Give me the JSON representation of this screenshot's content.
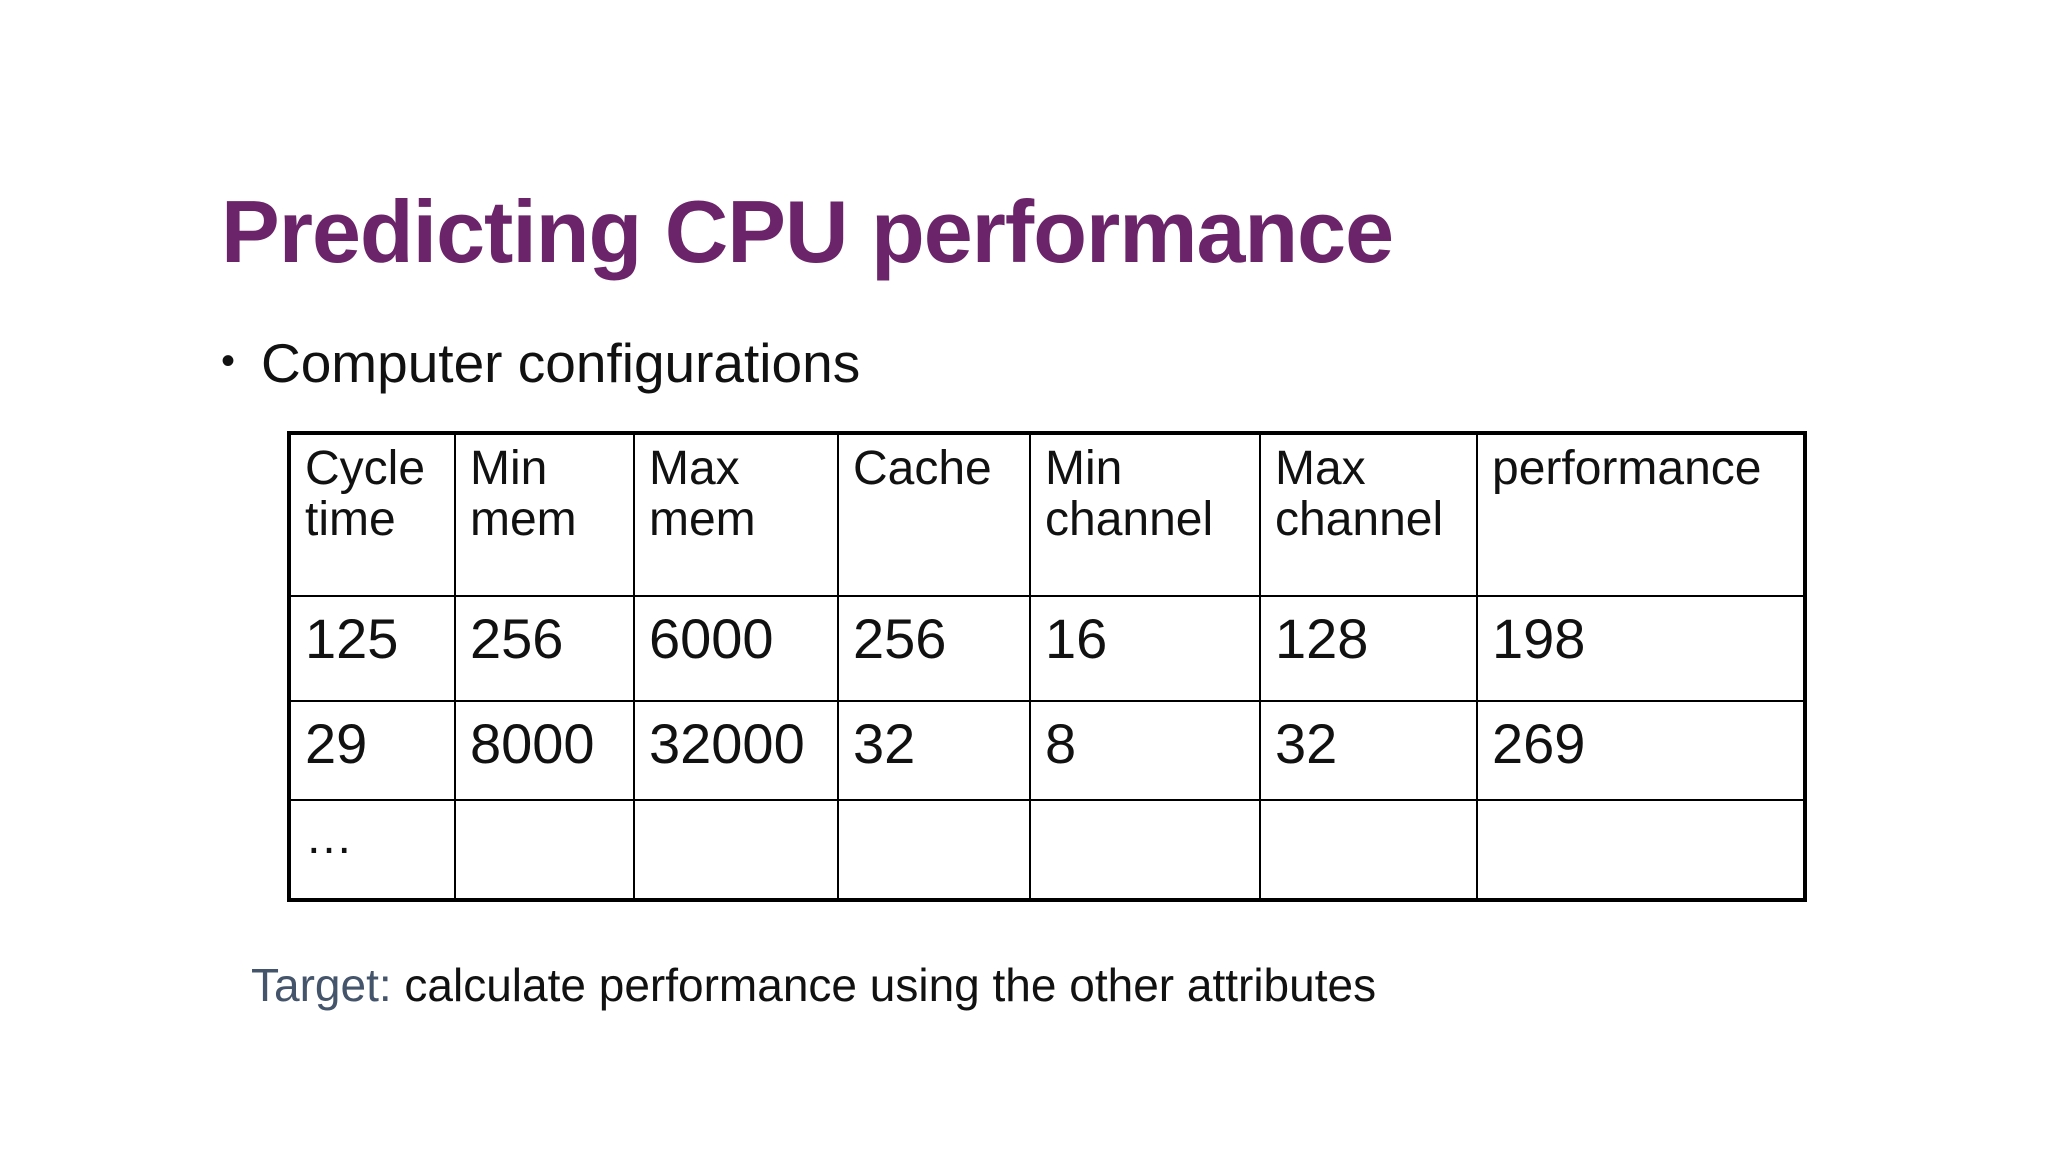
{
  "slide": {
    "title": "Predicting CPU performance",
    "bullet": "Computer configurations",
    "table": {
      "headers": [
        [
          "Cycle",
          "time"
        ],
        [
          "Min",
          "mem"
        ],
        [
          "Max",
          "mem"
        ],
        [
          "Cache",
          ""
        ],
        [
          "Min",
          "channel"
        ],
        [
          "Max",
          "channel"
        ],
        [
          "performance",
          ""
        ]
      ],
      "rows": [
        [
          "125",
          "256",
          "6000",
          "256",
          "16",
          "128",
          "198"
        ],
        [
          "29",
          "8000",
          "32000",
          "32",
          "8",
          "32",
          "269"
        ],
        [
          "…",
          "",
          "",
          "",
          "",
          "",
          ""
        ]
      ]
    },
    "target": {
      "label": "Target:",
      "text": " calculate performance using the other attributes"
    },
    "colors": {
      "title": "#6b2469",
      "target_label": "#44546a",
      "text": "#111111"
    }
  }
}
